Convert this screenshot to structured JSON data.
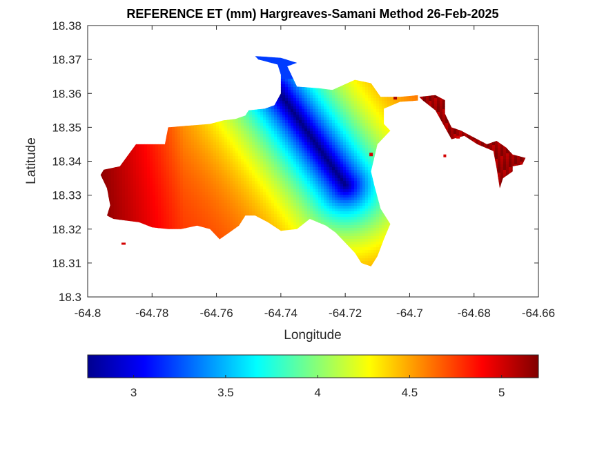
{
  "chart_data": {
    "type": "heatmap",
    "title": "REFERENCE ET (mm) Hargreaves-Samani Method  26-Feb-2025",
    "xlabel": "Longitude",
    "ylabel": "Latitude",
    "xlim": [
      -64.8,
      -64.66
    ],
    "ylim": [
      18.3,
      18.38
    ],
    "xticks": [
      "-64.8",
      "-64.78",
      "-64.76",
      "-64.74",
      "-64.72",
      "-64.7",
      "-64.68",
      "-64.66"
    ],
    "yticks": [
      "18.3",
      "18.31",
      "18.32",
      "18.33",
      "18.34",
      "18.35",
      "18.36",
      "18.37",
      "18.38"
    ],
    "colorbar": {
      "colormap": "jet",
      "range": [
        2.75,
        5.2
      ],
      "ticks": [
        "3",
        "3.5",
        "4",
        "4.5",
        "5"
      ]
    },
    "grid": false,
    "field": {
      "main_region_outline": [
        [
          -64.795,
          18.3375
        ],
        [
          -64.79,
          18.3385
        ],
        [
          -64.785,
          18.345
        ],
        [
          -64.776,
          18.345
        ],
        [
          -64.775,
          18.35
        ],
        [
          -64.762,
          18.351
        ],
        [
          -64.758,
          18.352
        ],
        [
          -64.754,
          18.3525
        ],
        [
          -64.751,
          18.3535
        ],
        [
          -64.75,
          18.355
        ],
        [
          -64.745,
          18.3555
        ],
        [
          -64.742,
          18.3565
        ],
        [
          -64.74,
          18.36
        ],
        [
          -64.74,
          18.3655
        ],
        [
          -64.741,
          18.3685
        ],
        [
          -64.747,
          18.37
        ],
        [
          -64.748,
          18.371
        ],
        [
          -64.74,
          18.3705
        ],
        [
          -64.735,
          18.369
        ],
        [
          -64.738,
          18.368
        ],
        [
          -64.735,
          18.362
        ],
        [
          -64.728,
          18.3615
        ],
        [
          -64.724,
          18.361
        ],
        [
          -64.717,
          18.364
        ],
        [
          -64.712,
          18.363
        ],
        [
          -64.709,
          18.359
        ],
        [
          -64.703,
          18.359
        ],
        [
          -64.697,
          18.3595
        ],
        [
          -64.696,
          18.358
        ],
        [
          -64.703,
          18.3575
        ],
        [
          -64.708,
          18.3555
        ],
        [
          -64.708,
          18.353
        ],
        [
          -64.708,
          18.351
        ],
        [
          -64.706,
          18.349
        ],
        [
          -64.71,
          18.345
        ],
        [
          -64.712,
          18.337
        ],
        [
          -64.711,
          18.333
        ],
        [
          -64.709,
          18.326
        ],
        [
          -64.706,
          18.3215
        ],
        [
          -64.708,
          18.317
        ],
        [
          -64.71,
          18.312
        ],
        [
          -64.712,
          18.309
        ],
        [
          -64.715,
          18.31
        ],
        [
          -64.717,
          18.313
        ],
        [
          -64.72,
          18.316
        ],
        [
          -64.723,
          18.319
        ],
        [
          -64.726,
          18.321
        ],
        [
          -64.731,
          18.323
        ],
        [
          -64.735,
          18.32
        ],
        [
          -64.74,
          18.3195
        ],
        [
          -64.744,
          18.322
        ],
        [
          -64.748,
          18.324
        ],
        [
          -64.751,
          18.324
        ],
        [
          -64.753,
          18.321
        ],
        [
          -64.756,
          18.319
        ],
        [
          -64.759,
          18.317
        ],
        [
          -64.762,
          18.32
        ],
        [
          -64.766,
          18.321
        ],
        [
          -64.771,
          18.32
        ],
        [
          -64.775,
          18.32
        ],
        [
          -64.78,
          18.3205
        ],
        [
          -64.784,
          18.322
        ],
        [
          -64.788,
          18.3225
        ],
        [
          -64.792,
          18.323
        ],
        [
          -64.794,
          18.324
        ],
        [
          -64.793,
          18.327
        ],
        [
          -64.794,
          18.332
        ],
        [
          -64.796,
          18.336
        ]
      ],
      "east_region_outline": [
        [
          -64.697,
          18.359
        ],
        [
          -64.692,
          18.3595
        ],
        [
          -64.689,
          18.358
        ],
        [
          -64.689,
          18.354
        ],
        [
          -64.687,
          18.35
        ],
        [
          -64.684,
          18.349
        ],
        [
          -64.682,
          18.348
        ],
        [
          -64.678,
          18.346
        ],
        [
          -64.676,
          18.345
        ],
        [
          -64.673,
          18.346
        ],
        [
          -64.67,
          18.344
        ],
        [
          -64.668,
          18.342
        ],
        [
          -64.664,
          18.341
        ],
        [
          -64.665,
          18.339
        ],
        [
          -64.668,
          18.3385
        ],
        [
          -64.668,
          18.337
        ],
        [
          -64.671,
          18.335
        ],
        [
          -64.672,
          18.332
        ],
        [
          -64.673,
          18.338
        ],
        [
          -64.674,
          18.343
        ],
        [
          -64.679,
          18.345
        ],
        [
          -64.683,
          18.3475
        ],
        [
          -64.687,
          18.3465
        ],
        [
          -64.692,
          18.355
        ],
        [
          -64.696,
          18.358
        ]
      ],
      "minimum_axis": [
        [
          -64.741,
          18.361
        ],
        [
          -64.72,
          18.333
        ]
      ],
      "minimum_value": 2.75,
      "maximum_value": 5.2,
      "west_edge_value": 5.15
    }
  }
}
